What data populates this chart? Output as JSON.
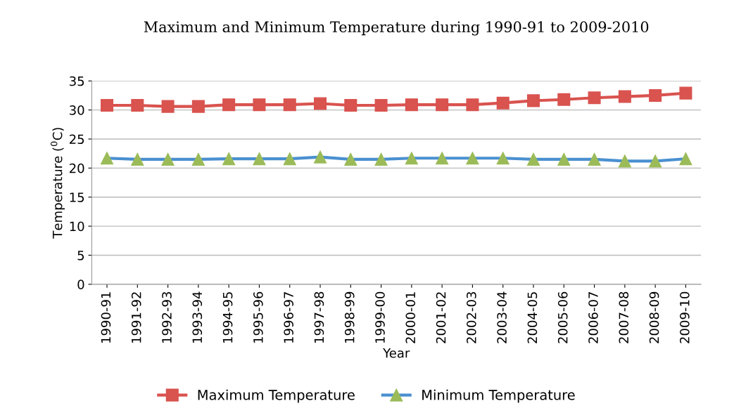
{
  "chart_data": {
    "type": "line",
    "title": "Maximum and Minimum Temperature during 1990-91 to 2009-2010",
    "xlabel": "Year",
    "ylabel": "Temperature ($^{0}$C)",
    "categories": [
      "1990-91",
      "1991-92",
      "1992-93",
      "1993-94",
      "1994-95",
      "1995-96",
      "1996-97",
      "1997-98",
      "1998-99",
      "1999-00",
      "2000-01",
      "2001-02",
      "2002-03",
      "2003-04",
      "2004-05",
      "2005-06",
      "2006-07",
      "2007-08",
      "2008-09",
      "2009-10"
    ],
    "series": [
      {
        "name": "Maximum Temperature",
        "color": "#d9534f",
        "marker": "square",
        "values": [
          30.8,
          30.8,
          30.6,
          30.6,
          30.9,
          30.9,
          30.9,
          31.1,
          30.8,
          30.8,
          30.9,
          30.9,
          30.9,
          31.2,
          31.6,
          31.8,
          32.1,
          32.3,
          32.5,
          32.9
        ]
      },
      {
        "name": "Minimum Temperature",
        "color": "#4a90d0",
        "marker": "triangle",
        "colors": [
          "#9bbb59",
          "#9bbb59",
          "#9bbb59",
          "#9bbb59",
          "#9bbb59",
          "#9bbb59",
          "#9bbb59",
          "#9bbb59",
          "#9bbb59",
          "#9bbb59",
          "#9bbb59",
          "#9bbb59",
          "#9bbb59",
          "#9bbb59",
          "#9bbb59",
          "#9bbb59",
          "#9bbb59",
          "#9bbb59",
          "#9bbb59",
          "#9bbb59"
        ],
        "values": [
          21.7,
          21.5,
          21.5,
          21.5,
          21.6,
          21.6,
          21.6,
          21.9,
          21.5,
          21.5,
          21.7,
          21.7,
          21.7,
          21.7,
          21.5,
          21.5,
          21.5,
          21.2,
          21.2,
          21.6
        ]
      }
    ],
    "ylim": [
      0,
      35
    ],
    "yticks": [
      0,
      5,
      10,
      15,
      20,
      25,
      30,
      35
    ],
    "grid": "y",
    "legend": "bottom",
    "line_style": "solid"
  }
}
